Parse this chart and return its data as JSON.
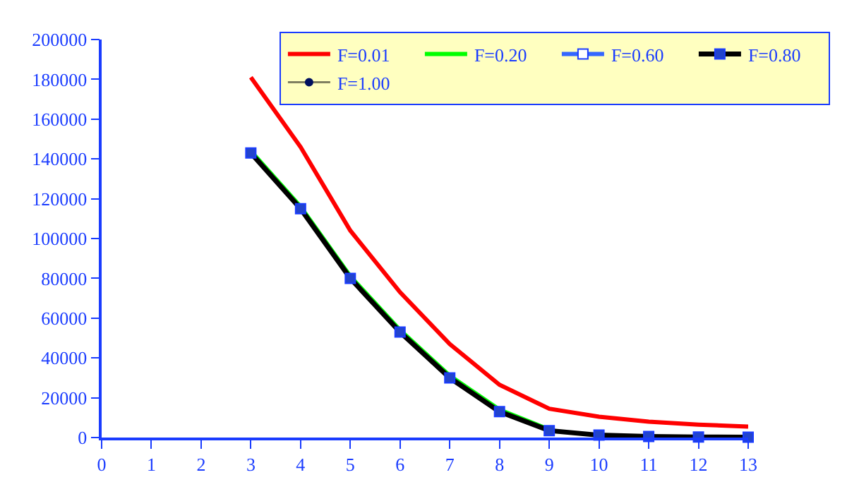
{
  "chart_data": {
    "type": "line",
    "x": [
      3,
      4,
      5,
      6,
      7,
      8,
      9,
      10,
      11,
      12,
      13
    ],
    "series": [
      {
        "name": "F=0.01",
        "color": "#ff0000",
        "marker": "none",
        "values": [
          181000,
          146000,
          104000,
          73000,
          47000,
          26500,
          14500,
          10500,
          8000,
          6500,
          5500
        ]
      },
      {
        "name": "F=0.20",
        "color": "#00ff00",
        "marker": "none",
        "values": [
          144000,
          116000,
          81000,
          54000,
          31000,
          14000,
          4000,
          null,
          null,
          null,
          null
        ]
      },
      {
        "name": "F=0.60",
        "color": "#3366ff",
        "marker": "square",
        "values": [
          null,
          null,
          null,
          null,
          null,
          null,
          null,
          null,
          null,
          null,
          null
        ]
      },
      {
        "name": "F=0.80",
        "color": "#000000",
        "marker": "square",
        "values": [
          143000,
          115000,
          80000,
          53000,
          30000,
          13000,
          3500,
          1200,
          500,
          300,
          200
        ]
      },
      {
        "name": "F=1.00",
        "color": "#808060",
        "marker": "circle",
        "values": [
          null,
          null,
          null,
          null,
          null,
          null,
          null,
          null,
          null,
          null,
          null
        ]
      }
    ],
    "xlim": [
      0,
      13
    ],
    "xticks": [
      0,
      1,
      2,
      3,
      4,
      5,
      6,
      7,
      8,
      9,
      10,
      11,
      12,
      13
    ],
    "ylim": [
      0,
      200000
    ],
    "yticks": [
      0,
      20000,
      40000,
      60000,
      80000,
      100000,
      120000,
      140000,
      160000,
      180000,
      200000
    ],
    "legend": "top"
  }
}
